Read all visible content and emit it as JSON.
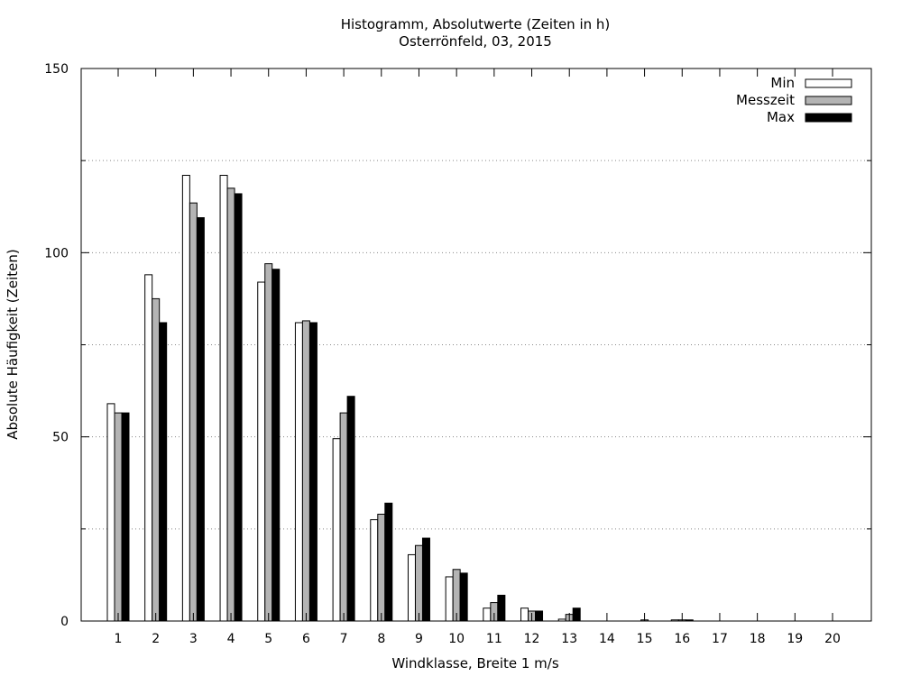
{
  "chart_data": {
    "type": "bar",
    "title": "Histogramm, Absolutwerte (Zeiten in h)",
    "subtitle": "Osterrönfeld, 03, 2015",
    "xlabel": "Windklasse, Breite 1 m/s",
    "ylabel": "Absolute Häufigkeit (Zeiten)",
    "ylim": [
      0,
      150
    ],
    "yticks": [
      "0",
      "50",
      "100",
      "150"
    ],
    "grid": "horizontal dotted, every 25",
    "legend_position": "top-right",
    "categories": [
      "1",
      "2",
      "3",
      "4",
      "5",
      "6",
      "7",
      "8",
      "9",
      "10",
      "11",
      "12",
      "13",
      "14",
      "15",
      "16",
      "17",
      "18",
      "19",
      "20"
    ],
    "series": [
      {
        "name": "Min",
        "color": "#ffffff",
        "values": [
          59,
          94,
          121,
          121,
          92,
          81,
          49.5,
          27.5,
          18,
          12,
          3.5,
          3.5,
          0.5,
          0,
          0,
          0.3,
          0,
          0,
          0,
          0
        ]
      },
      {
        "name": "Messzeit",
        "color": "#b4b4b4",
        "values": [
          56.5,
          87.5,
          113.5,
          117.5,
          97,
          81.5,
          56.5,
          29,
          20.5,
          14,
          5,
          2.7,
          1.8,
          0,
          0.3,
          0.3,
          0,
          0,
          0,
          0
        ]
      },
      {
        "name": "Max",
        "color": "#000000",
        "values": [
          56.5,
          81,
          109.5,
          116,
          95.5,
          81,
          61,
          32,
          22.5,
          13,
          7,
          2.7,
          3.5,
          0,
          0,
          0.3,
          0,
          0,
          0,
          0
        ]
      }
    ]
  }
}
